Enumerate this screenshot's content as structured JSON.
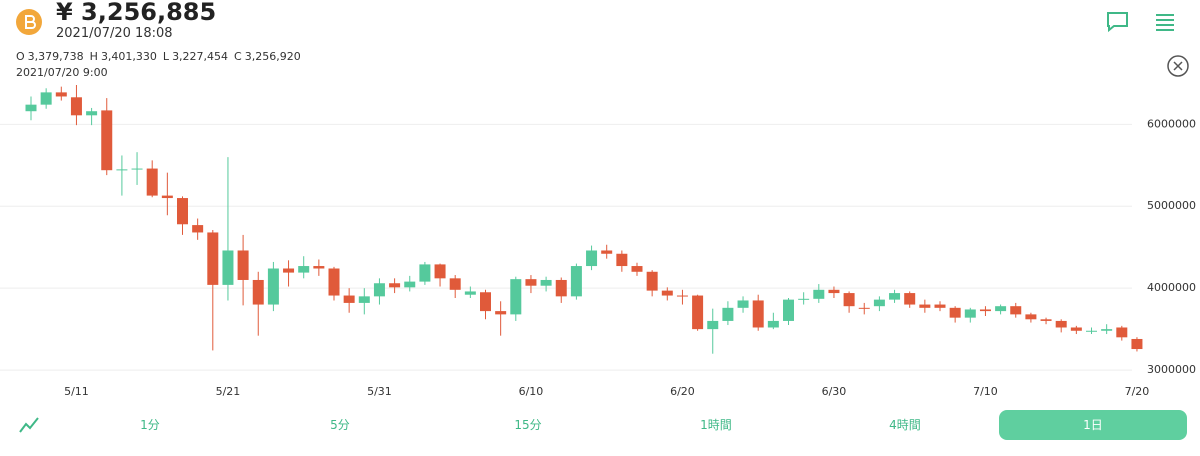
{
  "header": {
    "price": "¥ 3,256,885",
    "datetime": "2021/07/20 18:08",
    "ohlc": [
      {
        "label": "O",
        "value": "3,379,738"
      },
      {
        "label": "H",
        "value": "3,401,330"
      },
      {
        "label": "L",
        "value": "3,227,454"
      },
      {
        "label": "C",
        "value": "3,256,920"
      }
    ],
    "candle_time": "2021/07/20 9:00"
  },
  "chart_data": {
    "type": "candlestick",
    "categories": [
      null,
      null,
      null,
      "5/11",
      null,
      null,
      null,
      null,
      null,
      null,
      null,
      null,
      null,
      "5/21",
      null,
      null,
      null,
      null,
      null,
      null,
      null,
      null,
      null,
      "5/31",
      null,
      null,
      null,
      null,
      null,
      null,
      null,
      null,
      null,
      "6/10",
      null,
      null,
      null,
      null,
      null,
      null,
      null,
      null,
      null,
      "6/20",
      null,
      null,
      null,
      null,
      null,
      null,
      null,
      null,
      null,
      "6/30",
      null,
      null,
      null,
      null,
      null,
      null,
      null,
      null,
      null,
      "7/10",
      null,
      null,
      null,
      null,
      null,
      null,
      null,
      null,
      null,
      "7/20"
    ],
    "open": [
      6160000,
      6240000,
      6390000,
      6330000,
      6110000,
      6170000,
      5440000,
      5450000,
      5460000,
      5130000,
      5100000,
      4770000,
      4680000,
      4040000,
      4460000,
      4100000,
      3800000,
      4240000,
      4190000,
      4270000,
      4240000,
      3910000,
      3820000,
      3900000,
      4060000,
      4010000,
      4080000,
      4290000,
      4120000,
      3920000,
      3950000,
      3720000,
      3680000,
      4110000,
      4030000,
      4100000,
      3900000,
      4270000,
      4460000,
      4420000,
      4270000,
      4200000,
      3970000,
      3910000,
      3910000,
      3500000,
      3600000,
      3760000,
      3850000,
      3520000,
      3600000,
      3860000,
      3870000,
      3980000,
      3940000,
      3760000,
      3780000,
      3860000,
      3940000,
      3800000,
      3800000,
      3760000,
      3640000,
      3740000,
      3720000,
      3780000,
      3680000,
      3620000,
      3600000,
      3520000,
      3480000,
      3480000,
      3520000,
      3379738
    ],
    "high": [
      6340000,
      6440000,
      6460000,
      6480000,
      6200000,
      6320000,
      5620000,
      5660000,
      5560000,
      5410000,
      5120000,
      4850000,
      4710000,
      5600000,
      4650000,
      4200000,
      4320000,
      4340000,
      4390000,
      4350000,
      4260000,
      4000000,
      4000000,
      4120000,
      4120000,
      4150000,
      4320000,
      4300000,
      4160000,
      4020000,
      3980000,
      3840000,
      4140000,
      4160000,
      4140000,
      4130000,
      4300000,
      4520000,
      4530000,
      4460000,
      4310000,
      4220000,
      4010000,
      3980000,
      3920000,
      3750000,
      3840000,
      3900000,
      3920000,
      3700000,
      3880000,
      3950000,
      4050000,
      4020000,
      3960000,
      3820000,
      3900000,
      3980000,
      3960000,
      3860000,
      3840000,
      3780000,
      3760000,
      3780000,
      3800000,
      3820000,
      3700000,
      3640000,
      3620000,
      3540000,
      3520000,
      3560000,
      3540000,
      3401330
    ],
    "low": [
      6050000,
      6190000,
      6290000,
      5990000,
      5990000,
      5380000,
      5130000,
      5260000,
      5110000,
      4890000,
      4650000,
      4590000,
      3240000,
      3850000,
      3790000,
      3420000,
      3720000,
      4020000,
      4120000,
      4150000,
      3850000,
      3700000,
      3680000,
      3800000,
      3940000,
      3960000,
      4040000,
      4020000,
      3880000,
      3880000,
      3620000,
      3420000,
      3600000,
      3940000,
      3960000,
      3820000,
      3860000,
      4220000,
      4360000,
      4200000,
      4150000,
      3900000,
      3850000,
      3800000,
      3480000,
      3200000,
      3550000,
      3700000,
      3480000,
      3500000,
      3550000,
      3800000,
      3820000,
      3880000,
      3700000,
      3680000,
      3720000,
      3820000,
      3760000,
      3700000,
      3720000,
      3580000,
      3580000,
      3660000,
      3680000,
      3640000,
      3580000,
      3560000,
      3460000,
      3440000,
      3440000,
      3440000,
      3360000,
      3227454
    ],
    "close": [
      6240000,
      6390000,
      6340000,
      6110000,
      6160000,
      5440000,
      5450000,
      5460000,
      5130000,
      5100000,
      4780000,
      4680000,
      4040000,
      4460000,
      4100000,
      3800000,
      4240000,
      4190000,
      4270000,
      4240000,
      3910000,
      3820000,
      3900000,
      4060000,
      4010000,
      4080000,
      4290000,
      4120000,
      3980000,
      3960000,
      3720000,
      3680000,
      4110000,
      4030000,
      4100000,
      3900000,
      4270000,
      4460000,
      4420000,
      4270000,
      4200000,
      3970000,
      3910000,
      3900000,
      3500000,
      3600000,
      3760000,
      3850000,
      3520000,
      3600000,
      3860000,
      3870000,
      3980000,
      3940000,
      3780000,
      3750000,
      3860000,
      3940000,
      3800000,
      3760000,
      3760000,
      3640000,
      3740000,
      3720000,
      3780000,
      3680000,
      3620000,
      3600000,
      3520000,
      3480000,
      3480000,
      3500000,
      3400000,
      3256920
    ],
    "up_color": "#55c99c",
    "down_color": "#e05a3a",
    "ylim": [
      2940000,
      6480000
    ],
    "yticks": [
      3000000,
      4000000,
      5000000,
      6000000
    ],
    "grid": true
  },
  "tabs": {
    "labels": [
      "1分",
      "5分",
      "15分",
      "1時間",
      "4時間",
      "1日"
    ],
    "selected_index": 5
  }
}
